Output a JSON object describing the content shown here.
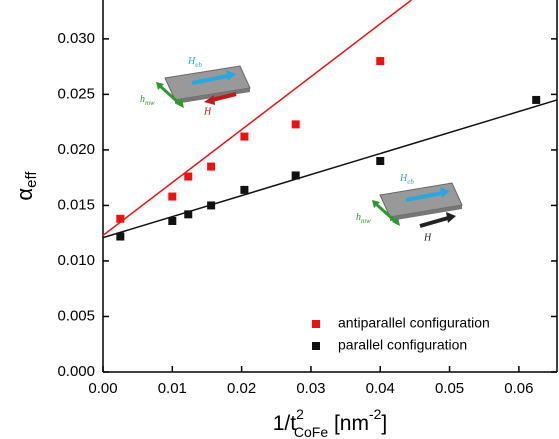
{
  "chart_data": {
    "type": "scatter",
    "y_label": {
      "text": "α",
      "sub": "eff"
    },
    "x_label": {
      "text": "1/t",
      "sup": "2",
      "sub": "CoFe",
      "unit": " [nm",
      "unit_sup": "-2",
      "unit_end": "]"
    },
    "xlim": [
      0,
      0.0655
    ],
    "ylim": [
      0,
      0.0335
    ],
    "xticks": [
      {
        "value": 0,
        "label": "0.00"
      },
      {
        "value": 0.01,
        "label": "0.01"
      },
      {
        "value": 0.02,
        "label": "0.02"
      },
      {
        "value": 0.03,
        "label": "0.03"
      },
      {
        "value": 0.04,
        "label": "0.04"
      },
      {
        "value": 0.05,
        "label": "0.05"
      },
      {
        "value": 0.06,
        "label": "0.06"
      }
    ],
    "yticks": [
      {
        "value": 0,
        "label": "0.000"
      },
      {
        "value": 0.005,
        "label": "0.005"
      },
      {
        "value": 0.01,
        "label": "0.010"
      },
      {
        "value": 0.015,
        "label": "0.015"
      },
      {
        "value": 0.02,
        "label": "0.020"
      },
      {
        "value": 0.025,
        "label": "0.025"
      },
      {
        "value": 0.03,
        "label": "0.030"
      }
    ],
    "series": [
      {
        "name": "antiparallel configuration",
        "color": "#ee1111",
        "x": [
          0.0025,
          0.01,
          0.0123,
          0.0156,
          0.0204,
          0.0278,
          0.04
        ],
        "values": [
          0.0138,
          0.0158,
          0.0176,
          0.0185,
          0.0212,
          0.0223,
          0.028
        ],
        "fit": {
          "x": [
            0,
            0.0445
          ],
          "y": [
            0.0123,
            0.0335
          ]
        }
      },
      {
        "name": "parallel configuration",
        "color": "#111111",
        "x": [
          0.0025,
          0.01,
          0.0123,
          0.0156,
          0.0204,
          0.0278,
          0.04,
          0.0625
        ],
        "values": [
          0.0122,
          0.0136,
          0.0142,
          0.015,
          0.0164,
          0.0177,
          0.019,
          0.0245
        ],
        "fit": {
          "x": [
            0,
            0.0655
          ],
          "y": [
            0.0121,
            0.0245
          ]
        }
      }
    ],
    "legend": "lower right",
    "insets": [
      {
        "eb": {
          "text": "H",
          "sub": "eb"
        },
        "mw": {
          "text": "h",
          "sub": "mw"
        },
        "h": "H"
      },
      {
        "eb": {
          "text": "H",
          "sub": "eb"
        },
        "mw": {
          "text": "h",
          "sub": "mw"
        },
        "h": "H"
      }
    ]
  }
}
